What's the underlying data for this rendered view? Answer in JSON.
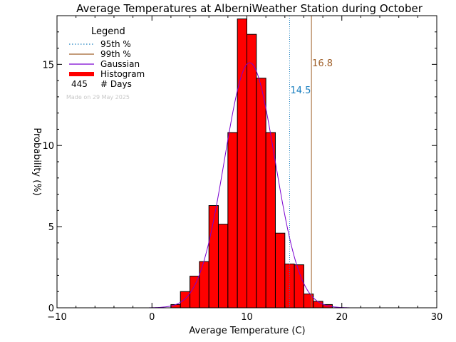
{
  "chart_data": {
    "type": "bar",
    "title": "Average Temperatures at AlberniWeather Station during October",
    "xlabel": "Average Temperature (C)",
    "ylabel": "Probability (%)",
    "xlim": [
      -10,
      30
    ],
    "ylim": [
      0,
      18
    ],
    "xticks": [
      -10,
      0,
      10,
      20,
      30
    ],
    "yticks": [
      0,
      5,
      10,
      15
    ],
    "bin_width": 1,
    "bins": [
      {
        "x0": 2,
        "y": 0.2
      },
      {
        "x0": 3,
        "y": 1.0
      },
      {
        "x0": 4,
        "y": 1.95
      },
      {
        "x0": 5,
        "y": 2.85
      },
      {
        "x0": 6,
        "y": 6.3
      },
      {
        "x0": 7,
        "y": 5.15
      },
      {
        "x0": 8,
        "y": 10.8
      },
      {
        "x0": 9,
        "y": 17.8
      },
      {
        "x0": 10,
        "y": 16.85
      },
      {
        "x0": 11,
        "y": 14.15
      },
      {
        "x0": 12,
        "y": 10.8
      },
      {
        "x0": 13,
        "y": 4.6
      },
      {
        "x0": 14,
        "y": 2.7
      },
      {
        "x0": 15,
        "y": 2.65
      },
      {
        "x0": 16,
        "y": 0.85
      },
      {
        "x0": 17,
        "y": 0.4
      },
      {
        "x0": 18,
        "y": 0.2
      }
    ],
    "gaussian": {
      "mean": 10.3,
      "sd": 2.65,
      "peak": 15.1
    },
    "percentile_95": {
      "value": 14.5,
      "label": "14.5",
      "color": "#1a7fc0"
    },
    "percentile_99": {
      "value": 16.8,
      "label": "16.8",
      "color": "#a0602a"
    },
    "legend": {
      "title": "Legend",
      "position": "top-left",
      "entries": [
        {
          "name": "95th %",
          "style": "dotted",
          "color": "#1a7fc0"
        },
        {
          "name": "99th %",
          "style": "solid",
          "color": "#a0602a"
        },
        {
          "name": "Gaussian",
          "style": "solid",
          "color": "#7a00d0"
        },
        {
          "name": "Histogram",
          "style": "thick",
          "color": "#ff0000"
        }
      ],
      "days_count": "445",
      "days_label": "# Days"
    },
    "watermark": "Made on 29 May 2025",
    "colors": {
      "histogram": "#ff0000",
      "gaussian": "#7a00d0"
    }
  }
}
